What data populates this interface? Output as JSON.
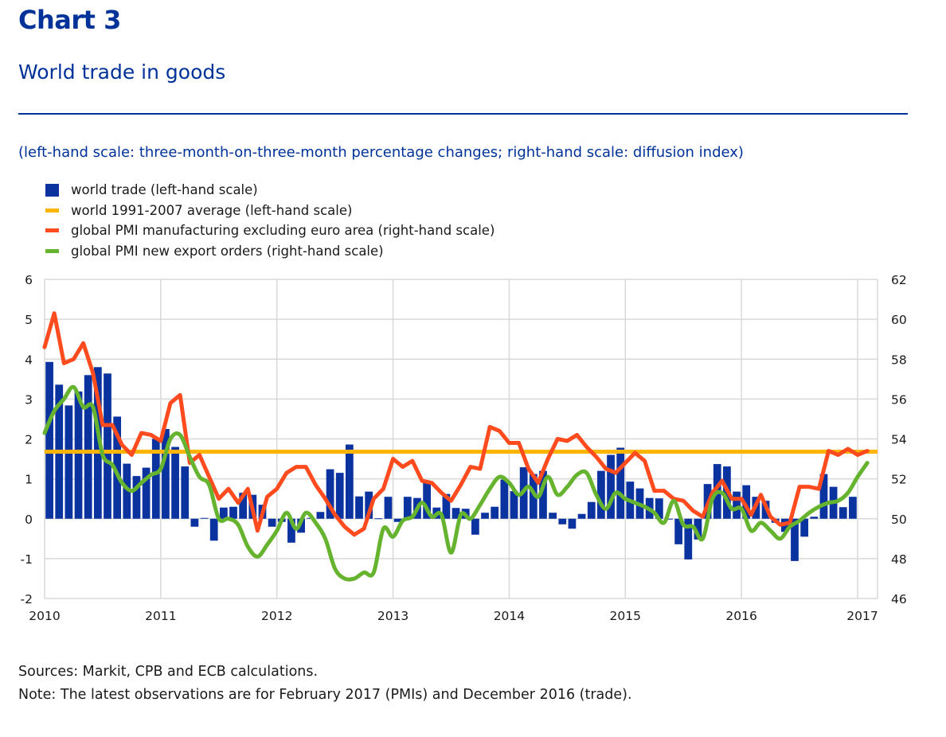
{
  "header": {
    "chart_label": "Chart 3",
    "title": "World trade in goods",
    "units_note": "(left-hand scale: three-month-on-three-month percentage changes; right-hand scale: diffusion index)"
  },
  "colors": {
    "brand_blue": "#003299",
    "trade_bar": "#0a33a0",
    "average_line": "#ffb400",
    "pmi_manufacturing": "#ff4b1e",
    "pmi_export_orders": "#65b32e",
    "grid": "#d9d9d9"
  },
  "legend": [
    {
      "label": "world trade (left-hand scale)",
      "kind": "box",
      "color": "#0a33a0"
    },
    {
      "label": "world 1991-2007 average (left-hand scale)",
      "kind": "line",
      "color": "#ffb400"
    },
    {
      "label": "global PMI manufacturing excluding euro area (right-hand scale)",
      "kind": "line",
      "color": "#ff4b1e"
    },
    {
      "label": "global PMI new export orders (right-hand scale)",
      "kind": "line",
      "color": "#65b32e"
    }
  ],
  "footer": {
    "sources": "Sources: Markit, CPB and ECB calculations.",
    "note": "Note: The latest observations are for February 2017 (PMIs) and December 2016 (trade)."
  },
  "chart_data": {
    "type": "bar+line",
    "title": "World trade in goods",
    "x_start": "2010-01",
    "frequency": "monthly",
    "x_tick_labels": [
      "2010",
      "2011",
      "2012",
      "2013",
      "2014",
      "2015",
      "2016",
      "2017"
    ],
    "left_axis": {
      "label": "three-month-on-three-month percentage changes",
      "ylim": [
        -2,
        6
      ],
      "ticks": [
        "6",
        "5",
        "4",
        "3",
        "2",
        "1",
        "0",
        "-1",
        "-2"
      ]
    },
    "right_axis": {
      "label": "diffusion index",
      "ylim": [
        46,
        62
      ],
      "ticks": [
        "62",
        "60",
        "58",
        "56",
        "54",
        "52",
        "50",
        "48",
        "46"
      ]
    },
    "grid": true,
    "legend_position": "top-left",
    "series": [
      {
        "name": "world trade (left-hand scale)",
        "type": "bar",
        "axis": "left",
        "values": [
          3.93,
          3.36,
          2.84,
          3.19,
          3.6,
          3.8,
          3.64,
          2.56,
          1.38,
          1.07,
          1.28,
          2.0,
          2.25,
          1.8,
          1.31,
          -0.2,
          0.02,
          -0.55,
          0.28,
          0.3,
          0.65,
          0.6,
          0.35,
          -0.2,
          -0.08,
          -0.6,
          -0.35,
          0.02,
          0.17,
          1.24,
          1.15,
          1.86,
          0.56,
          0.68,
          0.01,
          0.55,
          -0.08,
          0.55,
          0.52,
          0.95,
          0.28,
          0.62,
          0.27,
          0.25,
          -0.4,
          0.15,
          0.3,
          0.98,
          0.69,
          1.29,
          1.12,
          1.2,
          0.15,
          -0.14,
          -0.25,
          0.12,
          0.42,
          1.2,
          1.6,
          1.78,
          0.93,
          0.76,
          0.52,
          0.51,
          -0.02,
          -0.64,
          -1.02,
          -0.52,
          0.87,
          1.37,
          1.31,
          0.68,
          0.84,
          0.55,
          0.45,
          -0.1,
          -0.33,
          -1.06,
          -0.45,
          0.05,
          1.12,
          0.8,
          0.29,
          0.55
        ]
      },
      {
        "name": "world 1991-2007 average (left-hand scale)",
        "type": "hline",
        "axis": "left",
        "value": 1.68
      },
      {
        "name": "global PMI manufacturing excluding euro area (right-hand scale)",
        "type": "line",
        "axis": "right",
        "values": [
          58.6,
          60.3,
          57.8,
          58.0,
          58.8,
          57.3,
          54.7,
          54.7,
          53.7,
          53.2,
          54.3,
          54.2,
          53.9,
          55.8,
          56.2,
          52.8,
          53.2,
          52.1,
          51.0,
          51.5,
          50.8,
          51.5,
          49.4,
          51.1,
          51.5,
          52.3,
          52.6,
          52.6,
          51.7,
          51.0,
          50.2,
          49.6,
          49.2,
          49.5,
          51.0,
          51.5,
          53.0,
          52.6,
          52.9,
          51.9,
          51.8,
          51.3,
          50.9,
          51.7,
          52.6,
          52.5,
          54.6,
          54.4,
          53.8,
          53.8,
          52.5,
          51.8,
          53.0,
          54.0,
          53.9,
          54.2,
          53.6,
          53.1,
          52.5,
          52.3,
          52.8,
          53.3,
          52.9,
          51.4,
          51.4,
          51.0,
          50.9,
          50.4,
          50.1,
          51.3,
          51.9,
          51.0,
          51.0,
          50.2,
          51.2,
          50.1,
          49.7,
          49.8,
          51.6,
          51.6,
          51.5,
          53.4,
          53.2,
          53.5,
          53.2,
          53.4
        ]
      },
      {
        "name": "global PMI new export orders (right-hand scale)",
        "type": "line",
        "axis": "right",
        "values": [
          54.3,
          55.4,
          56.0,
          56.6,
          55.6,
          55.6,
          53.2,
          52.7,
          51.8,
          51.4,
          51.8,
          52.2,
          52.5,
          54.0,
          54.2,
          53.1,
          52.1,
          51.7,
          50.0,
          50.0,
          49.7,
          48.6,
          48.1,
          48.7,
          49.4,
          50.3,
          49.5,
          50.3,
          49.8,
          49.0,
          47.5,
          47.0,
          47.0,
          47.3,
          47.3,
          49.5,
          49.1,
          49.9,
          50.1,
          50.8,
          50.1,
          50.2,
          48.3,
          50.2,
          50.0,
          50.7,
          51.5,
          52.1,
          51.8,
          51.2,
          51.6,
          51.1,
          52.1,
          51.2,
          51.6,
          52.2,
          52.3,
          51.2,
          50.5,
          51.3,
          51.0,
          50.8,
          50.6,
          50.3,
          49.8,
          50.9,
          49.7,
          49.6,
          49.0,
          51.0,
          51.3,
          50.5,
          50.5,
          49.4,
          49.8,
          49.4,
          49.0,
          49.6,
          49.9,
          50.3,
          50.6,
          50.8,
          50.9,
          51.3,
          52.1,
          52.8
        ]
      }
    ]
  }
}
